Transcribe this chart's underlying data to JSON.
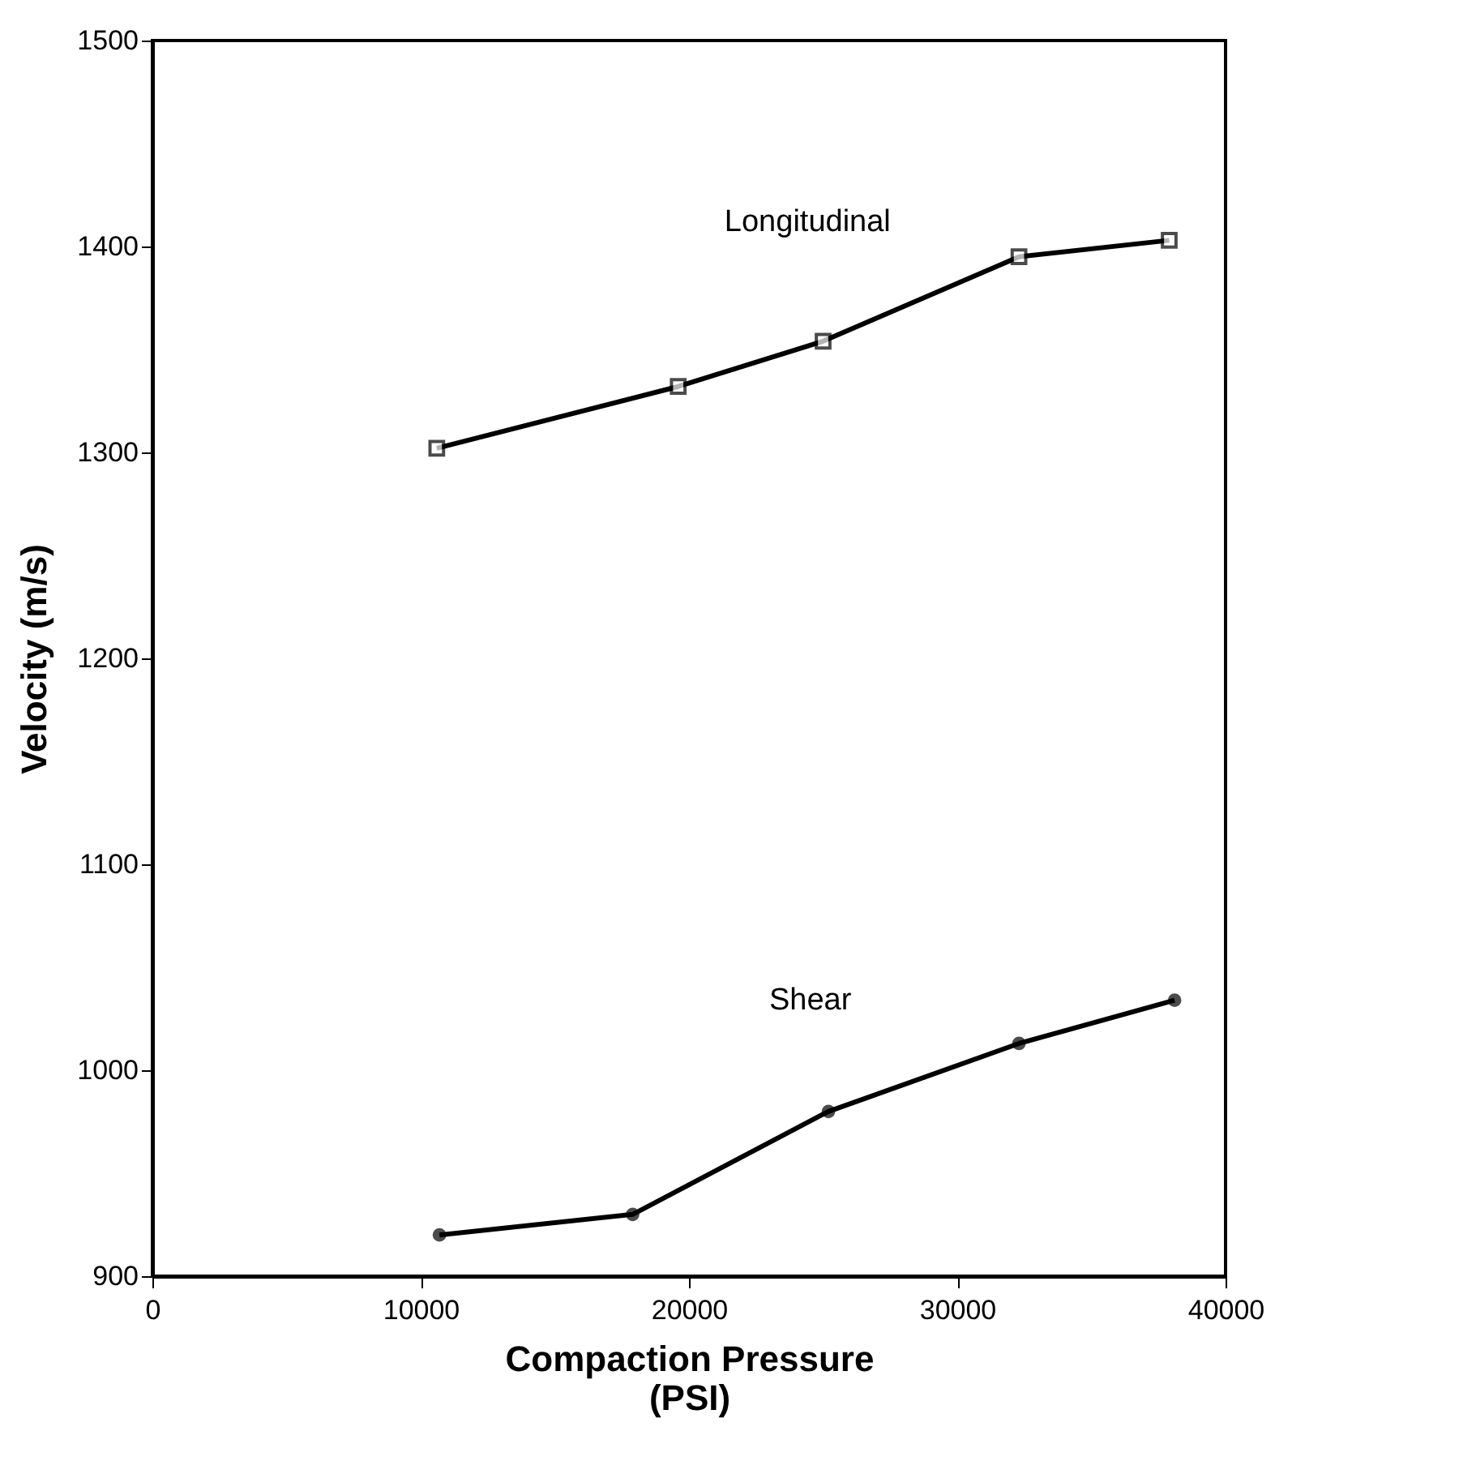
{
  "chart_data": {
    "type": "line",
    "xlabel": "Compaction Pressure\n(PSI)",
    "ylabel": "Velocity  (m/s)",
    "xlim": [
      0,
      40000
    ],
    "xticks": [
      0,
      10000,
      20000,
      30000,
      40000
    ],
    "ylim": [
      900,
      1500
    ],
    "yticks": [
      900,
      1000,
      1100,
      1200,
      1300,
      1400,
      1500
    ],
    "grid": false,
    "series": [
      {
        "name": "Longitudinal",
        "color": "#000000",
        "marker": "square",
        "x": [
          10600,
          19600,
          25000,
          32300,
          37900
        ],
        "values": [
          1302,
          1332,
          1354,
          1395,
          1403
        ]
      },
      {
        "name": "Shear",
        "color": "#000000",
        "marker": "circle",
        "x": [
          10700,
          17900,
          25200,
          32300,
          38100
        ],
        "values": [
          920,
          930,
          980,
          1013,
          1034
        ]
      }
    ]
  }
}
